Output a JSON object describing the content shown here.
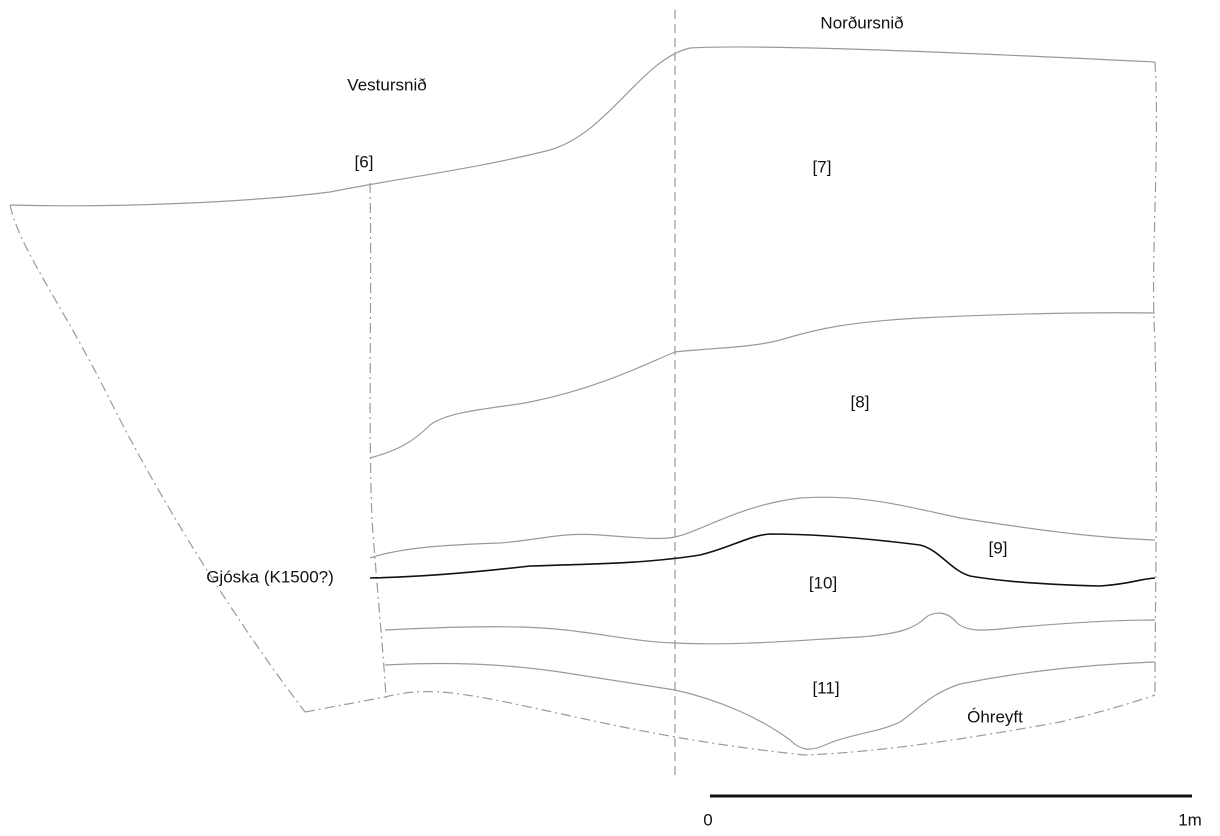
{
  "sections": {
    "north": "Norðursnið",
    "west": "Vestursnið"
  },
  "layers": [
    "[6]",
    "[7]",
    "[8]",
    "[9]",
    "[10]",
    "[11]"
  ],
  "tephra": "Gjóska (K1500?)",
  "undisturbed": "Óhreyft",
  "scale_bar": {
    "start": "0",
    "end": "1m"
  }
}
